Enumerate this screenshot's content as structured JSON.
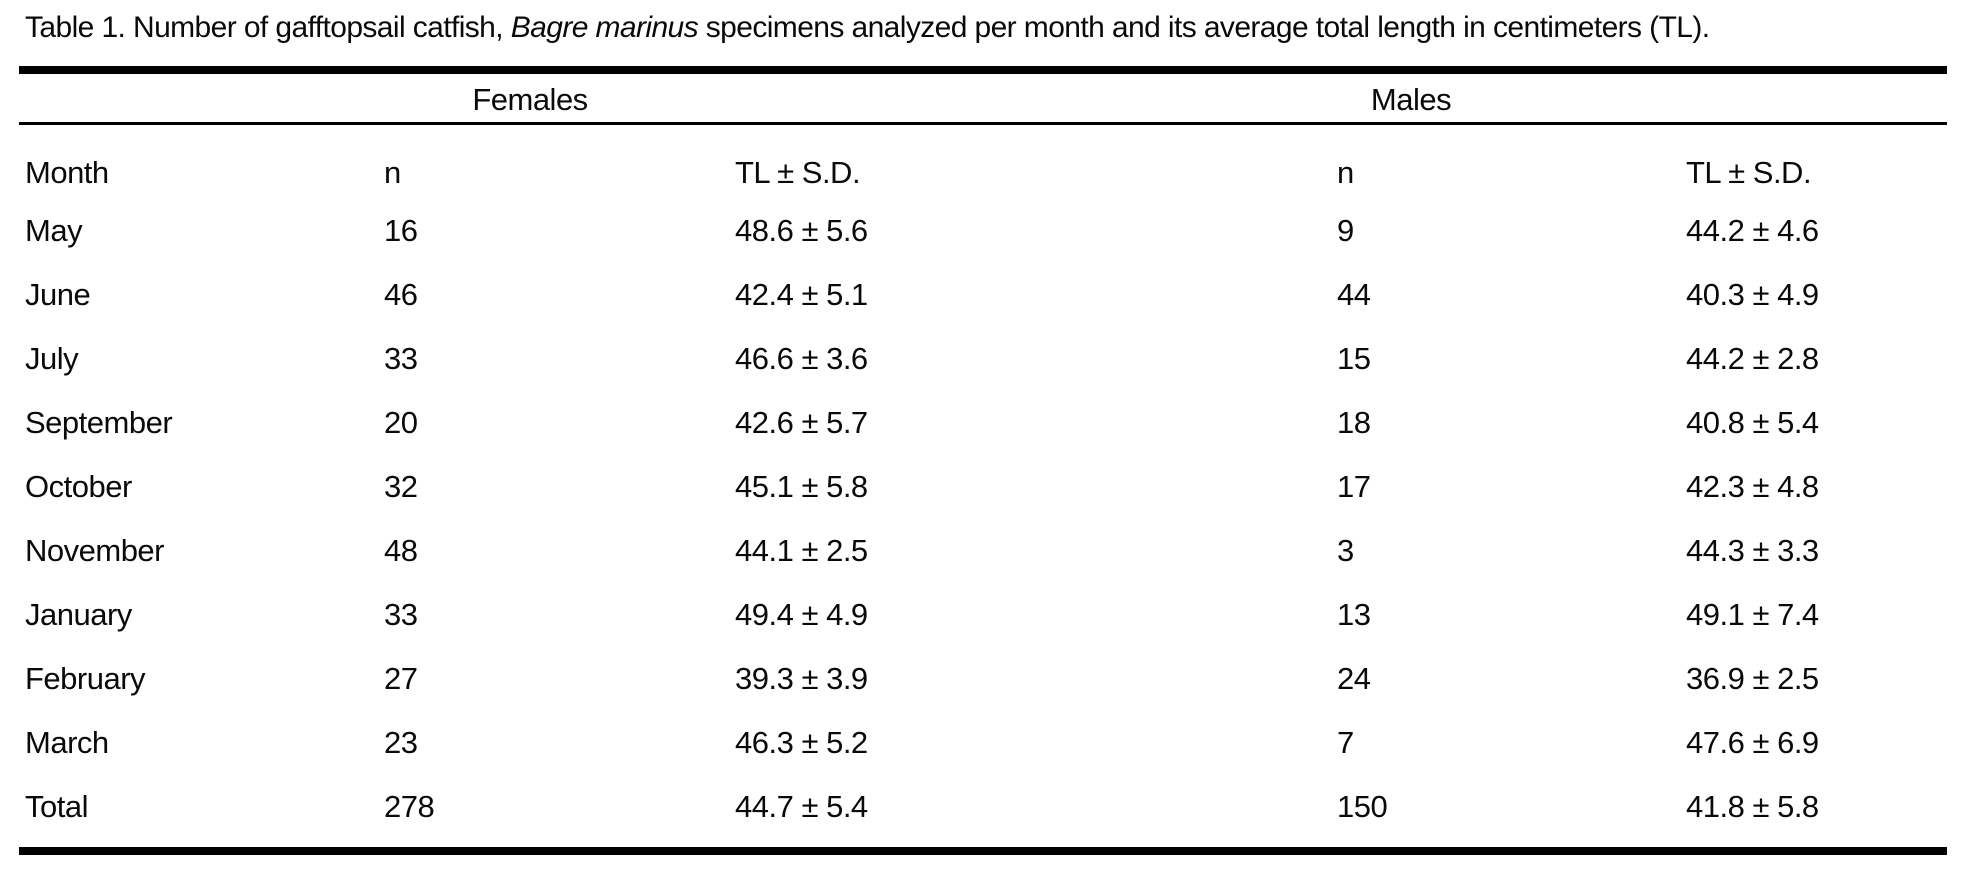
{
  "caption": {
    "prefix": "Table 1. Number of gafftopsail catfish, ",
    "species": "Bagre marinus",
    "suffix": " specimens analyzed per month and its average total length in centimeters (TL)."
  },
  "groups": {
    "females": "Females",
    "males": "Males"
  },
  "columns": {
    "month": "Month",
    "n_females": "n",
    "tl_females": "TL ± S.D.",
    "n_males": "n",
    "tl_males": "TL ± S.D."
  },
  "rows": [
    {
      "month": "May",
      "f_n": "16",
      "f_tl": "48.6 ± 5.6",
      "m_n": "9",
      "m_tl": "44.2 ± 4.6"
    },
    {
      "month": "June",
      "f_n": "46",
      "f_tl": "42.4 ± 5.1",
      "m_n": "44",
      "m_tl": "40.3 ± 4.9"
    },
    {
      "month": "July",
      "f_n": "33",
      "f_tl": "46.6 ± 3.6",
      "m_n": "15",
      "m_tl": "44.2 ± 2.8"
    },
    {
      "month": "September",
      "f_n": "20",
      "f_tl": "42.6 ± 5.7",
      "m_n": "18",
      "m_tl": "40.8 ± 5.4"
    },
    {
      "month": "October",
      "f_n": "32",
      "f_tl": "45.1 ± 5.8",
      "m_n": "17",
      "m_tl": "42.3 ± 4.8"
    },
    {
      "month": "November",
      "f_n": "48",
      "f_tl": "44.1 ± 2.5",
      "m_n": "3",
      "m_tl": "44.3 ± 3.3"
    },
    {
      "month": "January",
      "f_n": "33",
      "f_tl": "49.4 ± 4.9",
      "m_n": "13",
      "m_tl": "49.1 ± 7.4"
    },
    {
      "month": "February",
      "f_n": "27",
      "f_tl": "39.3 ± 3.9",
      "m_n": "24",
      "m_tl": "36.9 ± 2.5"
    },
    {
      "month": "March",
      "f_n": "23",
      "f_tl": "46.3 ± 5.2",
      "m_n": "7",
      "m_tl": "47.6 ± 6.9"
    },
    {
      "month": "Total",
      "f_n": "278",
      "f_tl": "44.7 ± 5.4",
      "m_n": "150",
      "m_tl": "41.8 ± 5.8"
    }
  ],
  "colors": {
    "text": "#0a0a0a",
    "rule": "#000000",
    "background": "#ffffff"
  },
  "chart_data": {
    "type": "table",
    "title": "Table 1. Number of gafftopsail catfish, Bagre marinus specimens analyzed per month and its average total length in centimeters (TL).",
    "column_groups": [
      "Females",
      "Males"
    ],
    "columns": [
      "Month",
      "Females n",
      "Females TL ± S.D.",
      "Males n",
      "Males TL ± S.D."
    ],
    "rows": [
      [
        "May",
        16,
        "48.6 ± 5.6",
        9,
        "44.2 ± 4.6"
      ],
      [
        "June",
        46,
        "42.4 ± 5.1",
        44,
        "40.3 ± 4.9"
      ],
      [
        "July",
        33,
        "46.6 ± 3.6",
        15,
        "44.2 ± 2.8"
      ],
      [
        "September",
        20,
        "42.6 ± 5.7",
        18,
        "40.8 ± 5.4"
      ],
      [
        "October",
        32,
        "45.1 ± 5.8",
        17,
        "42.3 ± 4.8"
      ],
      [
        "November",
        48,
        "44.1 ± 2.5",
        3,
        "44.3 ± 3.3"
      ],
      [
        "January",
        33,
        "49.4 ± 4.9",
        13,
        "49.1 ± 7.4"
      ],
      [
        "February",
        27,
        "39.3 ± 3.9",
        24,
        "36.9 ± 2.5"
      ],
      [
        "March",
        23,
        "46.3 ± 5.2",
        7,
        "47.6 ± 6.9"
      ],
      [
        "Total",
        278,
        "44.7 ± 5.4",
        150,
        "41.8 ± 5.8"
      ]
    ]
  }
}
